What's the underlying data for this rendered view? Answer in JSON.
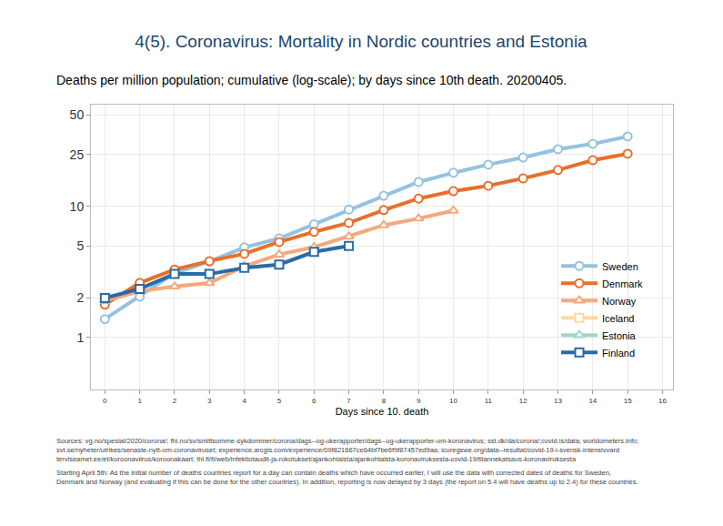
{
  "chart_data": {
    "type": "line",
    "title": "4(5). Coronavirus: Mortality in Nordic countries and Estonia",
    "subtitle": "Deaths per million population; cumulative (log-scale); by days since 10th death. 20200405.",
    "x_label": "Days since 10. death",
    "x": [
      0,
      1,
      2,
      3,
      4,
      5,
      6,
      7,
      8,
      9,
      10,
      11,
      12,
      13,
      14,
      15
    ],
    "series": [
      {
        "name": "Sweden",
        "color": "#95c2e0",
        "marker": "circle",
        "values": [
          1.38,
          2.05,
          3.1,
          3.8,
          4.87,
          5.7,
          7.3,
          9.5,
          12.1,
          15.4,
          18.1,
          20.9,
          23.7,
          27.4,
          30.1,
          34.3
        ]
      },
      {
        "name": "Denmark",
        "color": "#e8702a",
        "marker": "circle",
        "values": [
          1.78,
          2.61,
          3.3,
          3.83,
          4.35,
          5.36,
          6.4,
          7.5,
          9.4,
          11.5,
          13.1,
          14.4,
          16.4,
          19.0,
          22.6,
          25.3
        ]
      },
      {
        "name": "Norway",
        "color": "#f4a87c",
        "marker": "triangle",
        "values": [
          1.9,
          2.25,
          2.45,
          2.6,
          3.5,
          4.3,
          4.9,
          5.9,
          7.2,
          8.1,
          9.3,
          null,
          null,
          null,
          null,
          null
        ]
      },
      {
        "name": "Iceland",
        "color": "#fcd99b",
        "marker": "square",
        "values": [
          null,
          null,
          null,
          null,
          null,
          null,
          null,
          null,
          null,
          null,
          null,
          null,
          null,
          null,
          null,
          null
        ]
      },
      {
        "name": "Estonia",
        "color": "#9fd8c3",
        "marker": "triangle",
        "values": [
          null,
          null,
          null,
          null,
          null,
          null,
          null,
          null,
          null,
          null,
          null,
          null,
          null,
          null,
          null,
          null
        ]
      },
      {
        "name": "Finland",
        "color": "#2a6ba6",
        "marker": "square",
        "values": [
          2.0,
          2.35,
          3.05,
          3.05,
          3.4,
          3.6,
          4.5,
          5.0,
          null,
          null,
          null,
          null,
          null,
          null,
          null,
          null
        ]
      }
    ],
    "xlim": [
      -0.4,
      16.3
    ],
    "xticks": [
      0,
      1,
      2,
      3,
      4,
      5,
      6,
      7,
      8,
      9,
      10,
      11,
      12,
      13,
      14,
      15,
      16
    ],
    "ylim": [
      0.4,
      60
    ],
    "yticks": [
      1,
      2,
      5,
      10,
      25,
      50
    ],
    "log": "y",
    "grid": true,
    "legend": "lower right",
    "footnotes": [
      [
        "Sources: vg.no/spesial/2020/corona/; fhi.no/sv/smittsomme-sykdommer/corona/dags--og-ukerapporter/dags--og-ukerapporter-om-koronavirus; sst.dk/da/corona/;covid.is/data; worldometers.info;",
        "svt.se/nyheter/utrikes/senaste-nytt-om-coronaviruset; experience.arcgis.com/experience/09f821667ce64bf7be6f9f87457ed9aa; icuregswe.org/data--resultat/covid-19-i-svensk-intensivvard",
        "terviseamet.ee/et/koroonaviirus/koroonakaart; thl.fi/fi/web/infektiotaudit-ja-rokotukset/ajankohtaista/ajankohtaista-koronaviruksesta-covid-19/tilannekatsaus-koronaviruksesta"
      ],
      [
        "Starting April 5th: As the initial number of deaths countries report for a day can contain deaths which have occurred earlier, I will use the data with corrected dates of deaths for Sweden,",
        "Denmark and Norway (and evaluating if this can be done for the other countries). In addition, reporting is now delayed by 3 days (the report on 5.4 will have deaths up to 2.4) for these countries."
      ]
    ]
  }
}
